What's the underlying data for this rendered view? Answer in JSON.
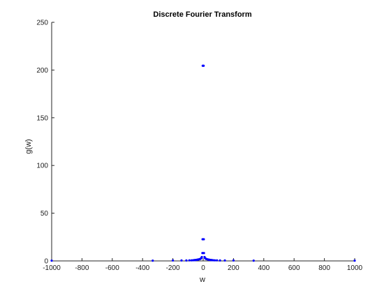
{
  "colors": {
    "marker": "#0000ff",
    "axis": "#262626",
    "background": "#ffffff"
  },
  "chart_data": {
    "type": "scatter",
    "title": "Discrete Fourier Transform",
    "xlabel": "w",
    "ylabel": "g(w)",
    "xlim": [
      -1000,
      1000
    ],
    "ylim": [
      0,
      250
    ],
    "grid": false,
    "legend": "none",
    "x_ticks": [
      -1000,
      -800,
      -600,
      -400,
      -200,
      0,
      200,
      400,
      600,
      800,
      1000
    ],
    "y_ticks": [
      0,
      50,
      100,
      150,
      200,
      250
    ],
    "x_tick_labels": [
      "-1000",
      "-800",
      "-600",
      "-400",
      "-200",
      "0",
      "200",
      "400",
      "600",
      "800",
      "1000"
    ],
    "y_tick_labels": [
      "0",
      "50",
      "100",
      "150",
      "200",
      "250"
    ],
    "series": [
      {
        "marker": "dot",
        "points": [
          {
            "x": -1000,
            "y": 0.3
          },
          {
            "x": -333,
            "y": 0.3
          },
          {
            "x": -200,
            "y": 0.5
          },
          {
            "x": -143,
            "y": 0.5
          },
          {
            "x": -111,
            "y": 0.5
          },
          {
            "x": -91,
            "y": 0.6
          },
          {
            "x": -77,
            "y": 0.6
          },
          {
            "x": -67,
            "y": 0.7
          },
          {
            "x": -59,
            "y": 0.8
          },
          {
            "x": -53,
            "y": 0.9
          },
          {
            "x": -48,
            "y": 1.0
          },
          {
            "x": -43,
            "y": 1.1
          },
          {
            "x": -40,
            "y": 1.2
          },
          {
            "x": -37,
            "y": 1.3
          },
          {
            "x": -34,
            "y": 1.4
          },
          {
            "x": -30,
            "y": 1.6
          },
          {
            "x": -25,
            "y": 1.8
          },
          {
            "x": -20,
            "y": 2.0
          },
          {
            "x": -16,
            "y": 2.5
          },
          {
            "x": -12,
            "y": 3.0
          },
          {
            "x": -9,
            "y": 4.0
          },
          {
            "x": -5,
            "y": 8.2
          },
          {
            "x": -4,
            "y": 22.7
          },
          {
            "x": -3,
            "y": 204.5
          },
          {
            "x": 3,
            "y": 204.5
          },
          {
            "x": 4,
            "y": 22.7
          },
          {
            "x": 5,
            "y": 8.2
          },
          {
            "x": 9,
            "y": 4.0
          },
          {
            "x": 12,
            "y": 3.0
          },
          {
            "x": 16,
            "y": 2.5
          },
          {
            "x": 20,
            "y": 2.0
          },
          {
            "x": 25,
            "y": 1.8
          },
          {
            "x": 30,
            "y": 1.6
          },
          {
            "x": 34,
            "y": 1.4
          },
          {
            "x": 37,
            "y": 1.3
          },
          {
            "x": 40,
            "y": 1.2
          },
          {
            "x": 43,
            "y": 1.1
          },
          {
            "x": 48,
            "y": 1.0
          },
          {
            "x": 53,
            "y": 0.9
          },
          {
            "x": 59,
            "y": 0.8
          },
          {
            "x": 67,
            "y": 0.7
          },
          {
            "x": 77,
            "y": 0.6
          },
          {
            "x": 91,
            "y": 0.6
          },
          {
            "x": 111,
            "y": 0.5
          },
          {
            "x": 143,
            "y": 0.5
          },
          {
            "x": 200,
            "y": 0.5
          },
          {
            "x": 333,
            "y": 0.3
          },
          {
            "x": 1000,
            "y": 0.3
          }
        ]
      }
    ]
  }
}
